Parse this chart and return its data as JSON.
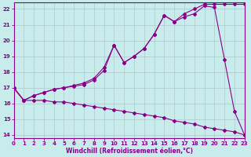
{
  "title": "",
  "xlabel": "Windchill (Refroidissement éolien,°C)",
  "ylabel": "",
  "background_color": "#c8ecec",
  "line_color": "#880088",
  "grid_color": "#b0c8c8",
  "xlim": [
    0,
    23
  ],
  "ylim": [
    13.8,
    22.4
  ],
  "yticks": [
    14,
    15,
    16,
    17,
    18,
    19,
    20,
    21,
    22
  ],
  "xticks": [
    0,
    1,
    2,
    3,
    4,
    5,
    6,
    7,
    8,
    9,
    10,
    11,
    12,
    13,
    14,
    15,
    16,
    17,
    18,
    19,
    20,
    21,
    22,
    23
  ],
  "line1_x": [
    0,
    1,
    2,
    3,
    4,
    5,
    6,
    7,
    8,
    9,
    10,
    11,
    12,
    13,
    14,
    15,
    16,
    17,
    18,
    19,
    20,
    21,
    22,
    23
  ],
  "line1_y": [
    17.0,
    16.2,
    16.5,
    16.7,
    16.9,
    17.0,
    17.1,
    17.2,
    17.5,
    18.1,
    19.7,
    18.6,
    19.0,
    19.5,
    20.4,
    21.6,
    21.2,
    21.5,
    21.7,
    22.2,
    22.1,
    18.8,
    15.5,
    14.0
  ],
  "line2_x": [
    0,
    1,
    2,
    3,
    4,
    5,
    6,
    7,
    8,
    9,
    10,
    11,
    12,
    13,
    14,
    15,
    16,
    17,
    18,
    19,
    20,
    21,
    22,
    23
  ],
  "line2_y": [
    17.0,
    16.2,
    16.5,
    16.7,
    16.9,
    17.0,
    17.15,
    17.3,
    17.6,
    18.3,
    19.7,
    18.6,
    19.0,
    19.5,
    20.4,
    21.6,
    21.2,
    21.7,
    22.0,
    22.3,
    22.3,
    22.3,
    22.3,
    22.3
  ],
  "line3_x": [
    0,
    1,
    2,
    3,
    4,
    5,
    6,
    7,
    8,
    9,
    10,
    11,
    12,
    13,
    14,
    15,
    16,
    17,
    18,
    19,
    20,
    21,
    22,
    23
  ],
  "line3_y": [
    17.0,
    16.2,
    16.2,
    16.2,
    16.1,
    16.1,
    16.0,
    15.9,
    15.8,
    15.7,
    15.6,
    15.5,
    15.4,
    15.3,
    15.2,
    15.1,
    14.9,
    14.8,
    14.7,
    14.5,
    14.4,
    14.3,
    14.2,
    14.0
  ]
}
